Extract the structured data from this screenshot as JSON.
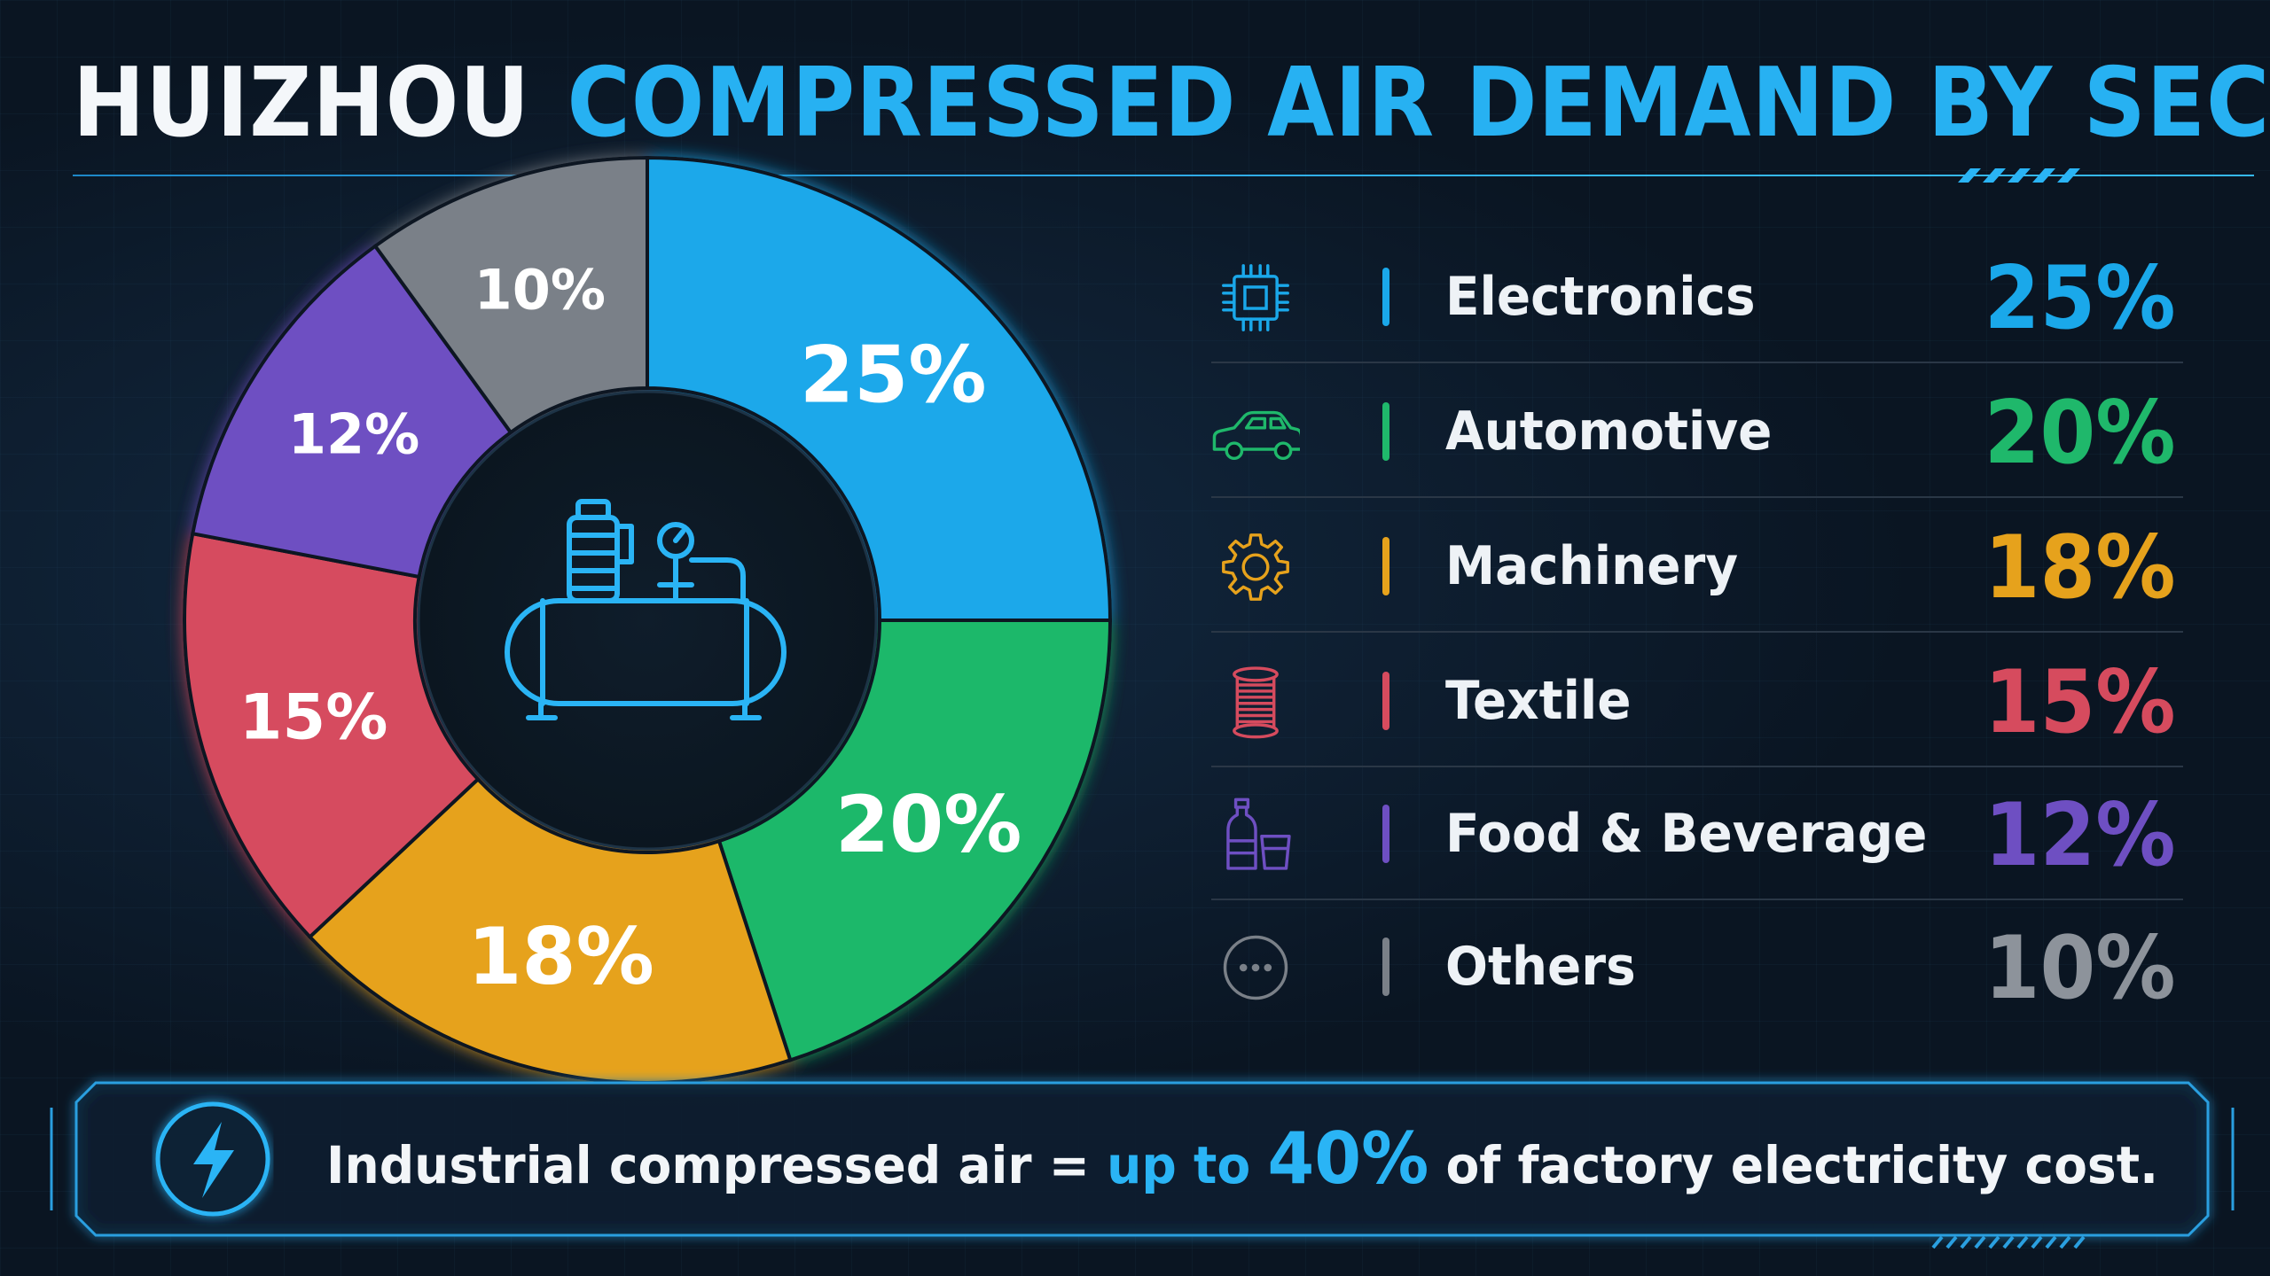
{
  "header": {
    "city": "HUIZHOU",
    "title": "COMPRESSED AIR DEMAND BY SECTOR"
  },
  "chart_data": {
    "type": "pie",
    "style": "donut",
    "title": "HUIZHOU COMPRESSED AIR DEMAND BY SECTOR",
    "unit": "%",
    "center_icon": "air-compressor-icon",
    "slices": [
      {
        "label": "Electronics",
        "value": 25,
        "display": "25%",
        "color": "#1aa8ea",
        "icon": "microchip-icon"
      },
      {
        "label": "Automotive",
        "value": 20,
        "display": "20%",
        "color": "#1fb86b",
        "icon": "car-icon"
      },
      {
        "label": "Machinery",
        "value": 18,
        "display": "18%",
        "color": "#e6a21c",
        "icon": "gear-icon"
      },
      {
        "label": "Textile",
        "value": 15,
        "display": "15%",
        "color": "#d64b5e",
        "icon": "thread-spool-icon"
      },
      {
        "label": "Food & Beverage",
        "value": 12,
        "display": "12%",
        "color": "#6e4fc2",
        "icon": "bottle-and-glass-icon"
      },
      {
        "label": "Others",
        "value": 10,
        "display": "10%",
        "color": "#7a8088",
        "icon": "more-dots-icon"
      }
    ]
  },
  "banner": {
    "icon": "lightning-bolt-icon",
    "text_before": "Industrial compressed air = ",
    "highlight_prefix": "up to ",
    "highlight_value": "40%",
    "text_after": " of factory electricity cost."
  }
}
